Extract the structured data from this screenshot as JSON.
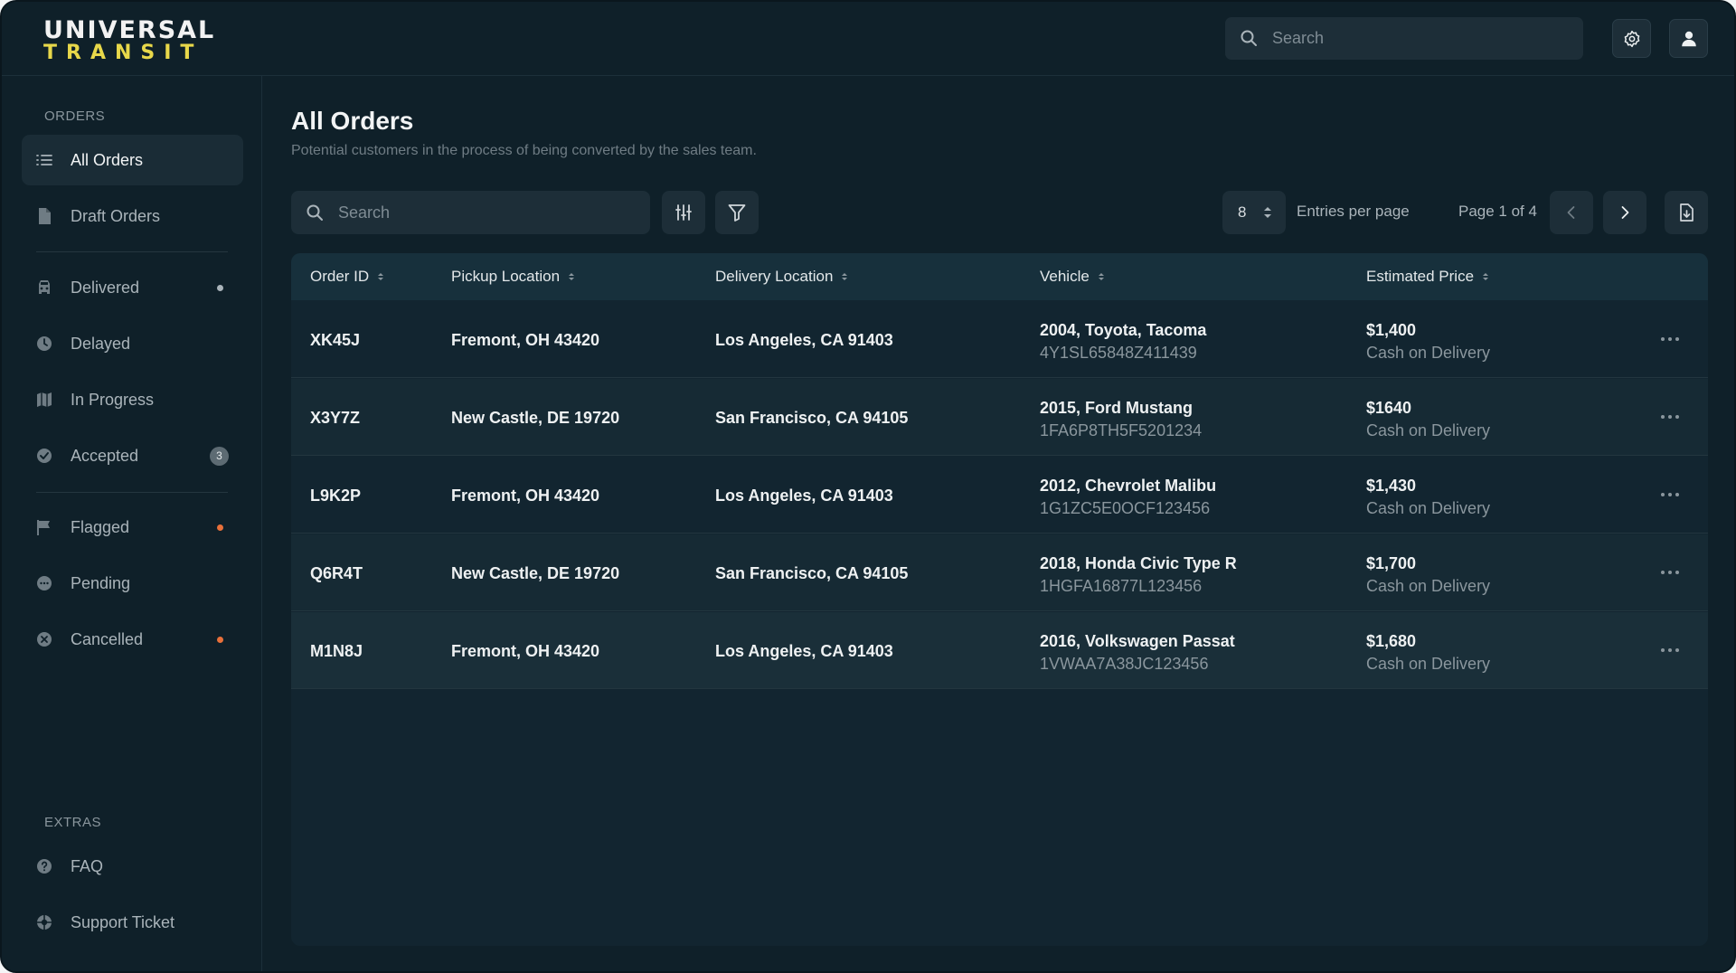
{
  "brand": {
    "line1": "UNIVERSAL",
    "line2": "TRANSIT"
  },
  "header": {
    "search_placeholder": "Search"
  },
  "sidebar": {
    "orders_label": "ORDERS",
    "extras_label": "EXTRAS",
    "items": [
      {
        "label": "All Orders",
        "icon": "list-icon"
      },
      {
        "label": "Draft Orders",
        "icon": "document-icon"
      },
      {
        "label": "Delivered",
        "icon": "truck-icon",
        "dot": "#aab4ba"
      },
      {
        "label": "Delayed",
        "icon": "clock-icon"
      },
      {
        "label": "In Progress",
        "icon": "map-icon"
      },
      {
        "label": "Accepted",
        "icon": "check-circle-icon",
        "badge": "3"
      },
      {
        "label": "Flagged",
        "icon": "flag-icon",
        "dot": "#e8703a"
      },
      {
        "label": "Pending",
        "icon": "ellipsis-circle-icon"
      },
      {
        "label": "Cancelled",
        "icon": "x-circle-icon",
        "dot": "#e8703a"
      }
    ],
    "extras": [
      {
        "label": "FAQ",
        "icon": "help-icon"
      },
      {
        "label": "Support Ticket",
        "icon": "lifebuoy-icon"
      }
    ]
  },
  "main": {
    "title": "All Orders",
    "subtitle": "Potential customers in the process of being converted by the sales team.",
    "search_placeholder": "Search",
    "per_page_value": "8",
    "per_page_label": "Entries per page",
    "page_label": "Page 1 of 4"
  },
  "table": {
    "columns": [
      "Order ID",
      "Pickup Location",
      "Delivery Location",
      "Vehicle",
      "Estimated Price"
    ],
    "rows": [
      {
        "id": "XK45J",
        "pickup": "Fremont, OH 43420",
        "delivery": "Los Angeles, CA 91403",
        "vehicle": "2004, Toyota, Tacoma",
        "vin": "4Y1SL65848Z411439",
        "price": "$1,400",
        "payment": "Cash on Delivery"
      },
      {
        "id": "X3Y7Z",
        "pickup": "New Castle, DE 19720",
        "delivery": "San Francisco, CA 94105",
        "vehicle": "2015, Ford Mustang",
        "vin": "1FA6P8TH5F5201234",
        "price": "$1640",
        "payment": "Cash on Delivery"
      },
      {
        "id": "L9K2P",
        "pickup": "Fremont, OH 43420",
        "delivery": "Los Angeles, CA 91403",
        "vehicle": "2012, Chevrolet Malibu",
        "vin": "1G1ZC5E0OCF123456",
        "price": "$1,430",
        "payment": "Cash on Delivery"
      },
      {
        "id": "Q6R4T",
        "pickup": "New Castle, DE 19720",
        "delivery": "San Francisco, CA 94105",
        "vehicle": "2018, Honda Civic Type R",
        "vin": "1HGFA16877L123456",
        "price": "$1,700",
        "payment": "Cash on Delivery"
      },
      {
        "id": "M1N8J",
        "pickup": "Fremont, OH 43420",
        "delivery": "Los Angeles, CA 91403",
        "vehicle": "2016, Volkswagen Passat",
        "vin": "1VWAA7A38JC123456",
        "price": "$1,680",
        "payment": "Cash on Delivery"
      }
    ]
  }
}
